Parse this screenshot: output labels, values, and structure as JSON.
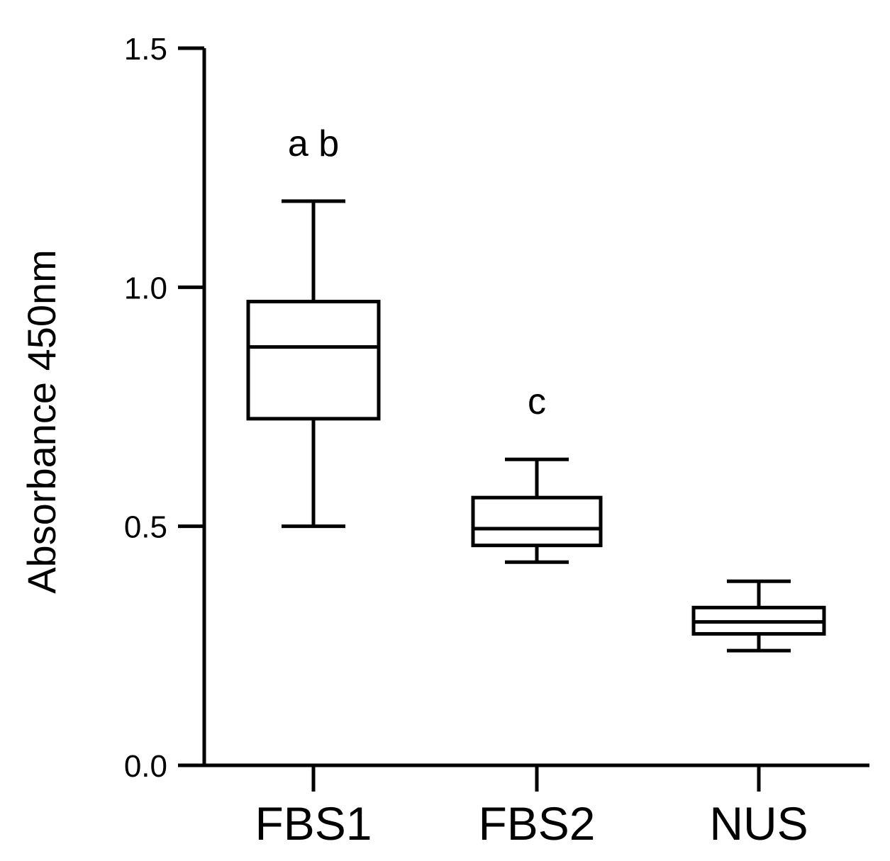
{
  "chart_data": {
    "type": "box",
    "title": "",
    "xlabel": "",
    "ylabel": "Absorbance 450nm",
    "ylim": [
      0,
      1.5
    ],
    "yticks": [
      "0.0",
      "0.5",
      "1.0",
      "1.5"
    ],
    "ytick_values": [
      0,
      0.5,
      1.0,
      1.5
    ],
    "categories": [
      "FBS1",
      "FBS2",
      "NUS"
    ],
    "boxes": [
      {
        "category": "FBS1",
        "min": 0.5,
        "q1": 0.725,
        "median": 0.875,
        "q3": 0.97,
        "max": 1.18,
        "annotation": "a b"
      },
      {
        "category": "FBS2",
        "min": 0.425,
        "q1": 0.46,
        "median": 0.495,
        "q3": 0.56,
        "max": 0.64,
        "annotation": "c"
      },
      {
        "category": "NUS",
        "min": 0.24,
        "q1": 0.275,
        "median": 0.3,
        "q3": 0.33,
        "max": 0.385,
        "annotation": ""
      }
    ],
    "grid": false,
    "legend": "none"
  }
}
